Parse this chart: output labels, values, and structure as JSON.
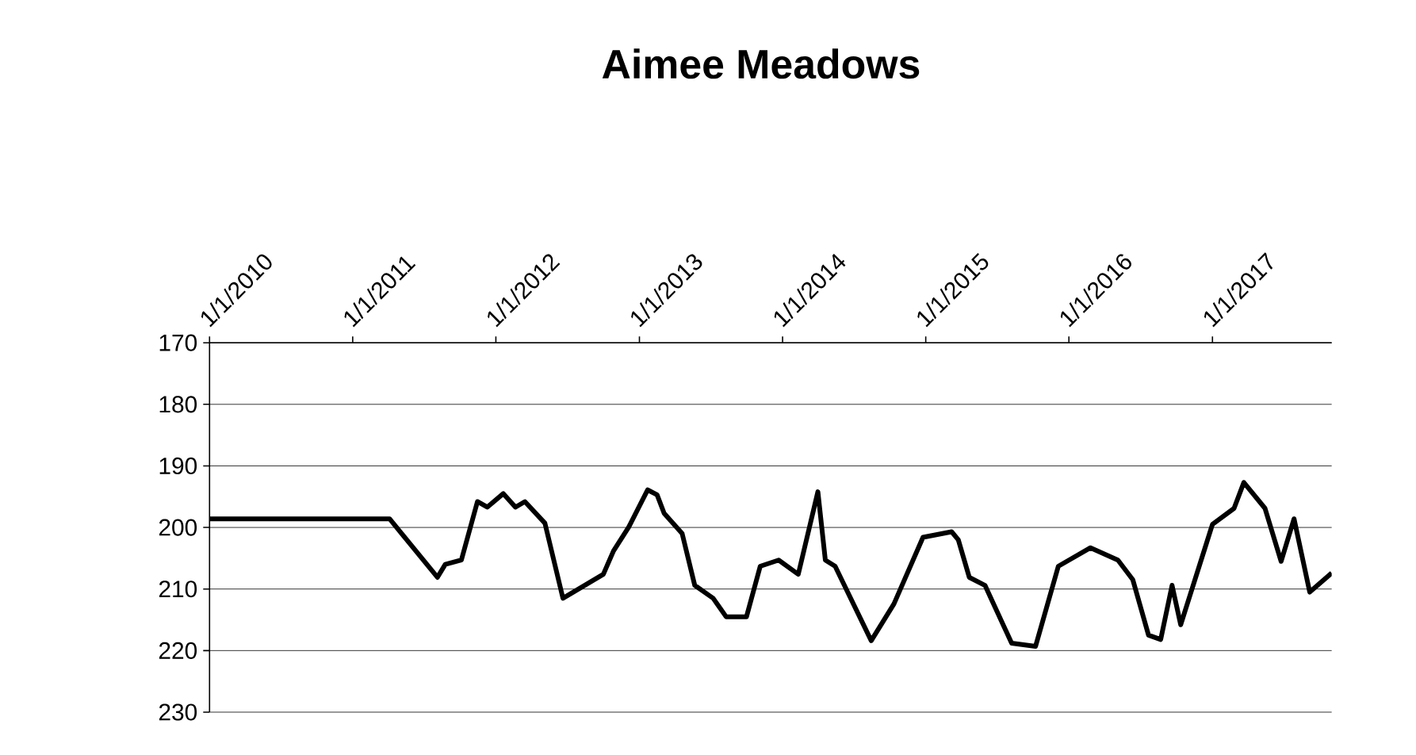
{
  "chart_data": {
    "type": "line",
    "title": "Aimee Meadows",
    "x": [
      "2010-01-01",
      "2011-04-05",
      "2011-08-05",
      "2011-08-25",
      "2011-10-05",
      "2011-11-15",
      "2011-12-10",
      "2012-01-20",
      "2012-02-20",
      "2012-03-15",
      "2012-05-05",
      "2012-06-20",
      "2012-10-01",
      "2012-10-27",
      "2012-12-05",
      "2013-01-22",
      "2013-02-15",
      "2013-03-05",
      "2013-04-20",
      "2013-05-22",
      "2013-07-08",
      "2013-08-10",
      "2013-10-01",
      "2013-11-05",
      "2013-12-22",
      "2014-02-10",
      "2014-04-01",
      "2014-04-20",
      "2014-05-15",
      "2014-08-15",
      "2014-10-12",
      "2014-12-25",
      "2015-03-08",
      "2015-03-25",
      "2015-04-22",
      "2015-06-01",
      "2015-08-08",
      "2015-10-08",
      "2015-12-05",
      "2016-02-25",
      "2016-05-05",
      "2016-06-12",
      "2016-07-22",
      "2016-08-22",
      "2016-09-20",
      "2016-10-12",
      "2017-01-01",
      "2017-02-25",
      "2017-03-22",
      "2017-05-15",
      "2017-06-25",
      "2017-07-28",
      "2017-09-06",
      "2017-11-01"
    ],
    "series": [
      {
        "color": "#000000",
        "values": [
          198.6,
          198.6,
          208.1,
          206.0,
          205.3,
          195.8,
          196.7,
          194.5,
          196.7,
          195.8,
          199.3,
          211.5,
          207.6,
          203.8,
          199.9,
          193.9,
          194.7,
          197.7,
          201.0,
          209.4,
          211.5,
          214.5,
          214.5,
          206.3,
          205.3,
          207.6,
          194.2,
          205.3,
          206.3,
          218.4,
          212.4,
          201.6,
          200.7,
          202.0,
          208.1,
          209.4,
          218.8,
          219.3,
          206.3,
          203.3,
          205.3,
          208.5,
          217.5,
          218.2,
          209.4,
          215.8,
          199.5,
          196.9,
          192.7,
          196.9,
          205.5,
          198.6,
          210.5,
          207.4
        ]
      }
    ],
    "xlim": [
      "2010-01-01",
      "2017-11-01"
    ],
    "xticks": [
      {
        "value": "2010-01-01",
        "label": "1/1/2010"
      },
      {
        "value": "2011-01-01",
        "label": "1/1/2011"
      },
      {
        "value": "2012-01-01",
        "label": "1/1/2012"
      },
      {
        "value": "2013-01-01",
        "label": "1/1/2013"
      },
      {
        "value": "2014-01-01",
        "label": "1/1/2014"
      },
      {
        "value": "2015-01-01",
        "label": "1/1/2015"
      },
      {
        "value": "2016-01-01",
        "label": "1/1/2016"
      },
      {
        "value": "2017-01-01",
        "label": "1/1/2017"
      }
    ],
    "ylim": [
      230,
      170
    ],
    "yticks": [
      170,
      180,
      190,
      200,
      210,
      220,
      230
    ],
    "grid": "y",
    "line_style": "solid",
    "marker": "none"
  }
}
